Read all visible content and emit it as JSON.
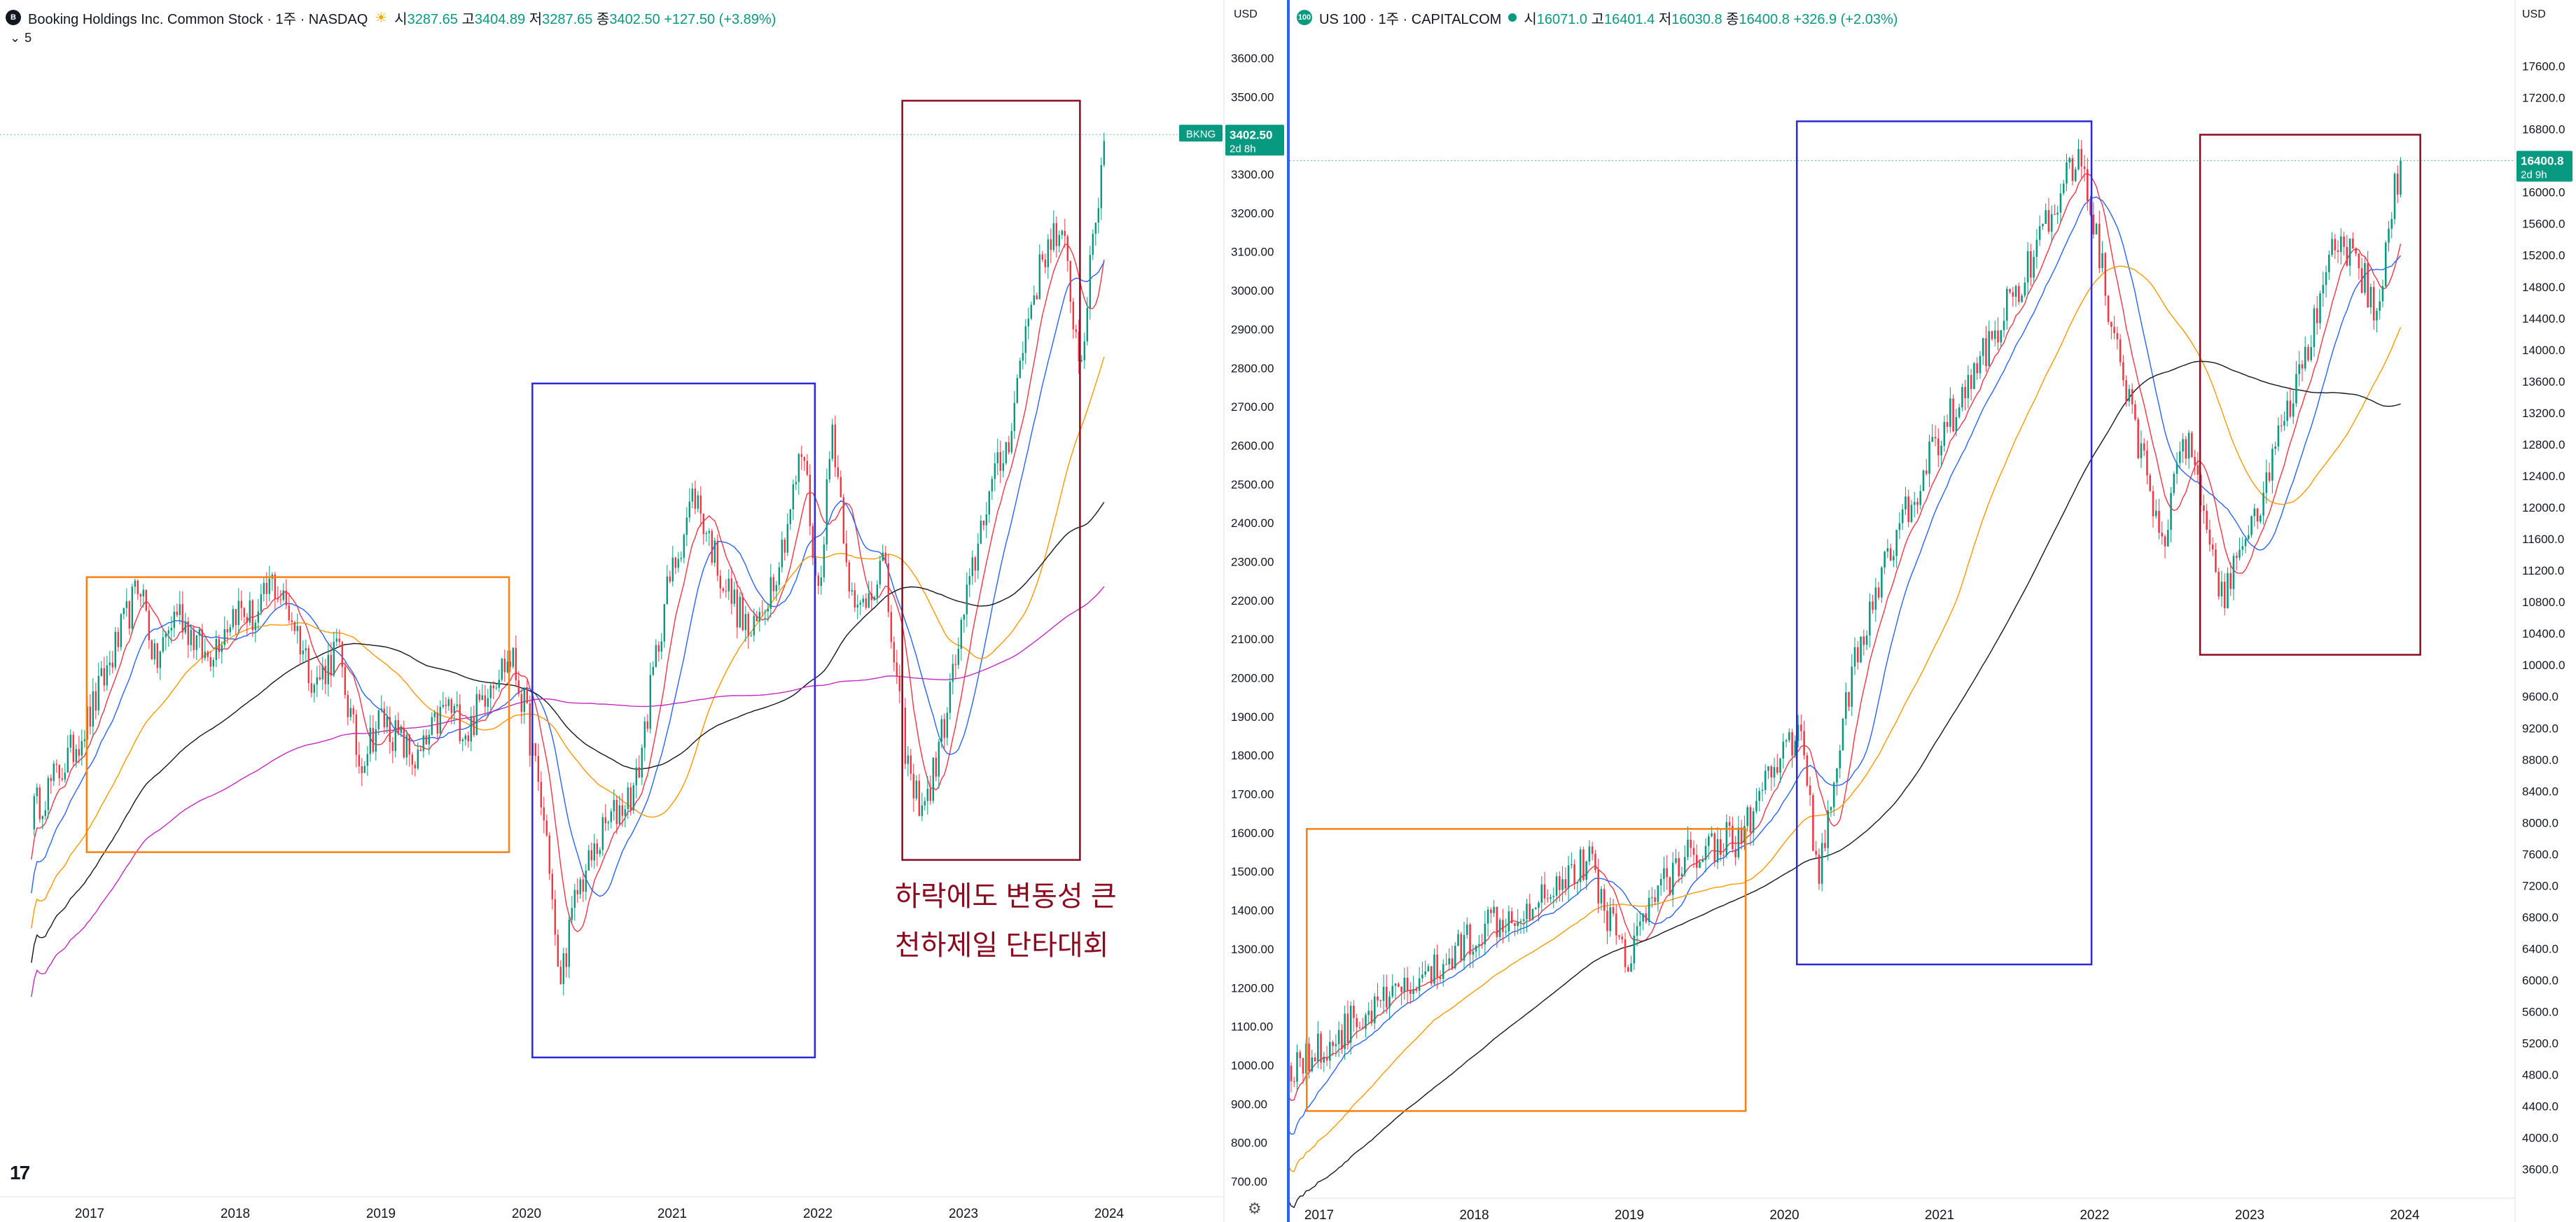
{
  "left": {
    "badge": "B",
    "title": "Booking Holdings Inc. Common Stock · 1주 · NASDAQ",
    "sun_icon": "sun-icon",
    "ohlc": [
      {
        "label": "시",
        "value": "3287.65"
      },
      {
        "label": "고",
        "value": "3404.89"
      },
      {
        "label": "저",
        "value": "3287.65"
      },
      {
        "label": "종",
        "value": "3402.50"
      }
    ],
    "change": "+127.50 (+3.89%)",
    "indicators_toggle": "5",
    "currency": "USD",
    "annotation_line1": "하락에도 변동성 큰",
    "annotation_line2": "천하제일 단타대회"
  },
  "right": {
    "badge": "100",
    "title": "US 100 · 1주 · CAPITALCOM",
    "ohlc": [
      {
        "label": "시",
        "value": "16071.0"
      },
      {
        "label": "고",
        "value": "16401.4"
      },
      {
        "label": "저",
        "value": "16030.8"
      },
      {
        "label": "종",
        "value": "16400.8"
      }
    ],
    "change": "+326.9 (+2.03%)",
    "currency": "USD"
  },
  "colors": {
    "up": "#089981",
    "down": "#f23645",
    "ma1": "#f23645",
    "ma2": "#2962ff",
    "ma3": "#ff9800",
    "ma4": "#131722",
    "ma5": "#c22ac2",
    "box_orange": "#ff7f0e",
    "box_blue": "#2a2ad8",
    "box_red": "#8b0a1f"
  },
  "chart_data": [
    {
      "type": "candlestick",
      "symbol": "BKNG",
      "price_label": "3402.50",
      "countdown": "2d 8h",
      "ylim": [
        700,
        3600
      ],
      "y_ticks": [
        "3600.00",
        "3500.00",
        "3400.00",
        "3300.00",
        "3200.00",
        "3100.00",
        "3000.00",
        "2900.00",
        "2800.00",
        "2700.00",
        "2600.00",
        "2500.00",
        "2400.00",
        "2300.00",
        "2200.00",
        "2100.00",
        "2000.00",
        "1900.00",
        "1800.00",
        "1700.00",
        "1600.00",
        "1500.00",
        "1400.00",
        "1300.00",
        "1200.00",
        "1100.00",
        "1000.00",
        "900.00",
        "800.00",
        "700.00"
      ],
      "x_ticks": [
        "2017",
        "2018",
        "2019",
        "2020",
        "2021",
        "2022",
        "2023",
        "2024"
      ],
      "anchors": [
        [
          2016.6,
          1650
        ],
        [
          2016.85,
          1790
        ],
        [
          2017.0,
          1900
        ],
        [
          2017.2,
          2100
        ],
        [
          2017.35,
          2250
        ],
        [
          2017.45,
          2030
        ],
        [
          2017.6,
          2180
        ],
        [
          2017.8,
          2050
        ],
        [
          2018.0,
          2180
        ],
        [
          2018.15,
          2150
        ],
        [
          2018.25,
          2250
        ],
        [
          2018.4,
          2150
        ],
        [
          2018.55,
          1980
        ],
        [
          2018.7,
          2080
        ],
        [
          2018.85,
          1780
        ],
        [
          2019.0,
          1900
        ],
        [
          2019.1,
          1850
        ],
        [
          2019.25,
          1780
        ],
        [
          2019.45,
          1930
        ],
        [
          2019.6,
          1860
        ],
        [
          2019.75,
          2000
        ],
        [
          2019.9,
          2050
        ],
        [
          2020.0,
          1900
        ],
        [
          2020.15,
          1560
        ],
        [
          2020.22,
          1200
        ],
        [
          2020.35,
          1450
        ],
        [
          2020.55,
          1620
        ],
        [
          2020.75,
          1720
        ],
        [
          2020.95,
          2200
        ],
        [
          2021.15,
          2480
        ],
        [
          2021.35,
          2250
        ],
        [
          2021.55,
          2100
        ],
        [
          2021.75,
          2330
        ],
        [
          2021.9,
          2600
        ],
        [
          2022.0,
          2200
        ],
        [
          2022.1,
          2650
        ],
        [
          2022.25,
          2150
        ],
        [
          2022.45,
          2300
        ],
        [
          2022.55,
          1950
        ],
        [
          2022.65,
          1700
        ],
        [
          2022.75,
          1680
        ],
        [
          2022.85,
          1850
        ],
        [
          2023.0,
          2150
        ],
        [
          2023.15,
          2450
        ],
        [
          2023.3,
          2600
        ],
        [
          2023.45,
          2950
        ],
        [
          2023.6,
          3150
        ],
        [
          2023.7,
          3100
        ],
        [
          2023.8,
          2800
        ],
        [
          2023.9,
          3150
        ],
        [
          2023.97,
          3402.5
        ]
      ],
      "boxes": [
        {
          "color": "box_orange",
          "x": [
            2016.98,
            2019.88
          ],
          "y": [
            1550,
            2260
          ]
        },
        {
          "color": "box_blue",
          "x": [
            2020.04,
            2021.98
          ],
          "y": [
            1020,
            2760
          ]
        },
        {
          "color": "box_red",
          "x": [
            2022.58,
            2023.8
          ],
          "y": [
            1530,
            3490
          ]
        }
      ]
    },
    {
      "type": "candlestick",
      "symbol": "US 100",
      "price_label": "16400.8",
      "countdown": "2d 9h",
      "ylim": [
        3500,
        17800
      ],
      "y_ticks": [
        "17600.0",
        "17200.0",
        "16800.0",
        "16400.0",
        "16000.0",
        "15600.0",
        "15200.0",
        "14800.0",
        "14400.0",
        "14000.0",
        "13600.0",
        "13200.0",
        "12800.0",
        "12400.0",
        "12000.0",
        "11600.0",
        "11200.0",
        "10800.0",
        "10400.0",
        "10000.0",
        "9600.0",
        "9200.0",
        "8800.0",
        "8400.0",
        "8000.0",
        "7600.0",
        "7200.0",
        "6800.0",
        "6400.0",
        "6000.0",
        "5600.0",
        "5200.0",
        "4800.0",
        "4400.0",
        "4000.0",
        "3600.0"
      ],
      "x_ticks": [
        "2017",
        "2018",
        "2019",
        "2020",
        "2021",
        "2022",
        "2023",
        "2024"
      ],
      "anchors": [
        [
          2016.8,
          4900
        ],
        [
          2017.0,
          5100
        ],
        [
          2017.25,
          5500
        ],
        [
          2017.5,
          5800
        ],
        [
          2017.75,
          6100
        ],
        [
          2018.0,
          6600
        ],
        [
          2018.15,
          6800
        ],
        [
          2018.3,
          6900
        ],
        [
          2018.55,
          7300
        ],
        [
          2018.75,
          7500
        ],
        [
          2018.85,
          6900
        ],
        [
          2018.98,
          6300
        ],
        [
          2019.2,
          7200
        ],
        [
          2019.45,
          7700
        ],
        [
          2019.7,
          7800
        ],
        [
          2019.9,
          8500
        ],
        [
          2020.1,
          9200
        ],
        [
          2020.22,
          7300
        ],
        [
          2020.4,
          9600
        ],
        [
          2020.6,
          11000
        ],
        [
          2020.8,
          12000
        ],
        [
          2021.0,
          12900
        ],
        [
          2021.2,
          13600
        ],
        [
          2021.45,
          14600
        ],
        [
          2021.7,
          15600
        ],
        [
          2021.9,
          16500
        ],
        [
          2021.98,
          15800
        ],
        [
          2022.1,
          14400
        ],
        [
          2022.3,
          12600
        ],
        [
          2022.45,
          11700
        ],
        [
          2022.6,
          12900
        ],
        [
          2022.75,
          11300
        ],
        [
          2022.85,
          10900
        ],
        [
          2023.0,
          11700
        ],
        [
          2023.2,
          12900
        ],
        [
          2023.4,
          14200
        ],
        [
          2023.55,
          15300
        ],
        [
          2023.7,
          15100
        ],
        [
          2023.82,
          14400
        ],
        [
          2023.9,
          15600
        ],
        [
          2023.97,
          16400.8
        ]
      ],
      "boxes": [
        {
          "color": "box_orange",
          "x": [
            2016.92,
            2019.75
          ],
          "y": [
            4340,
            7920
          ]
        },
        {
          "color": "box_blue",
          "x": [
            2020.08,
            2021.98
          ],
          "y": [
            6200,
            16900
          ]
        },
        {
          "color": "box_red",
          "x": [
            2022.68,
            2024.1
          ],
          "y": [
            10130,
            16730
          ]
        }
      ]
    }
  ]
}
